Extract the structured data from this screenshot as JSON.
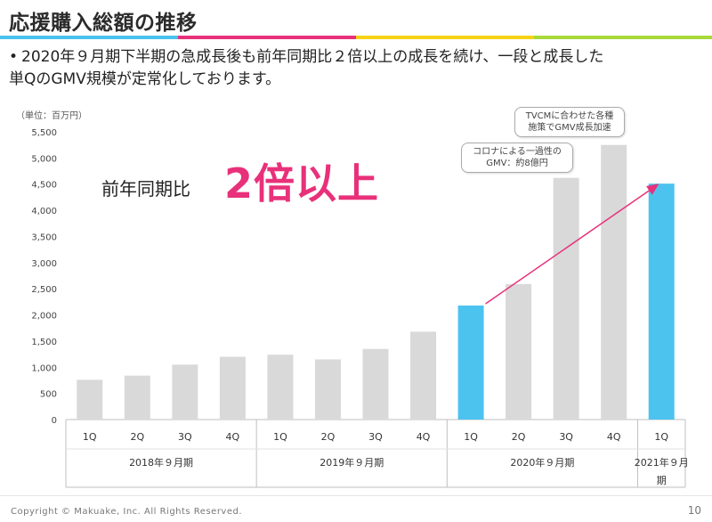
{
  "header": {
    "title": "応援購入総額の推移",
    "stripe_colors": [
      "#49c2ee",
      "#e8317a",
      "#f6d214",
      "#a9d93b"
    ]
  },
  "bullet": {
    "marker": "•",
    "line1": "2020年９月期下半期の急成長後も前年同期比２倍以上の成長を続け、一段と成長した",
    "line2": "単QのGMV規模が定常化しております。"
  },
  "unit_label": "（単位：百万円）",
  "comparison": {
    "label": "前年同期比",
    "value": "2倍以上"
  },
  "callouts": {
    "corona": [
      "コロナによる一過性の",
      "GMV：約8億円"
    ],
    "tvcm": [
      "TVCMに合わせた各種",
      "施策でGMV成長加速"
    ]
  },
  "chart_data": {
    "type": "bar",
    "ylim": [
      0,
      5500
    ],
    "yticks": [
      "0",
      "500",
      "1,000",
      "1,500",
      "2,000",
      "2,500",
      "3,000",
      "3,500",
      "4,000",
      "4,500",
      "5,000",
      "5,500"
    ],
    "ytick_values": [
      0,
      500,
      1000,
      1500,
      2000,
      2500,
      3000,
      3500,
      4000,
      4500,
      5000,
      5500
    ],
    "categories": [
      "1Q",
      "2Q",
      "3Q",
      "4Q",
      "1Q",
      "2Q",
      "3Q",
      "4Q",
      "1Q",
      "2Q",
      "3Q",
      "4Q",
      "1Q"
    ],
    "values": [
      760,
      840,
      1050,
      1200,
      1240,
      1150,
      1350,
      1680,
      2180,
      2590,
      4620,
      5250,
      4510
    ],
    "highlight": [
      false,
      false,
      false,
      false,
      false,
      false,
      false,
      false,
      true,
      false,
      false,
      false,
      true
    ],
    "colors": {
      "default": "#d9d9d9",
      "highlight": "#4cc3ef",
      "arrow": "#e8317a"
    },
    "fiscal_years": [
      {
        "label": "2018年９月期",
        "start": 0,
        "count": 4
      },
      {
        "label": "2019年９月期",
        "start": 4,
        "count": 4
      },
      {
        "label": "2020年９月期",
        "start": 8,
        "count": 4
      },
      {
        "label": "2021年９月",
        "label2": "期",
        "start": 12,
        "count": 1
      }
    ],
    "arrow": {
      "from": 8,
      "to": 12
    },
    "grid": false
  },
  "footer": {
    "copyright": "Copyright © Makuake, Inc. All Rights Reserved.",
    "page": "10"
  }
}
